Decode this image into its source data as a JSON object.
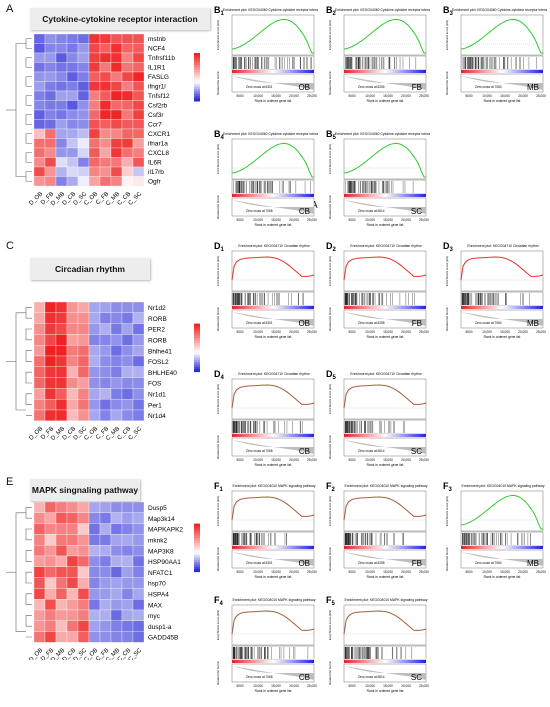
{
  "colors": {
    "hi": "#ee2222",
    "mid": "#ffffff",
    "lo": "#2b2bd8",
    "enrich_green": "#2ecc2e",
    "enrich_red": "#e83030",
    "enrich_brown": "#a85b3a"
  },
  "legend_ticks": [
    "2",
    "1",
    "0",
    "−1"
  ],
  "panels": [
    {
      "letter": "A",
      "title": "Cytokine-cytokine receptor interaction",
      "cols": [
        "D_OB",
        "D_FB",
        "D_MB",
        "D_CB",
        "D_SC",
        "C_OB",
        "C_FB",
        "C_MB",
        "C_CB",
        "C_SC"
      ],
      "rows": [
        "mstnb",
        "NCF4",
        "Tnfrsf11b",
        "IL1R1",
        "FASLG",
        "ifngr1l",
        "Tnfsf12",
        "Csf2rb",
        "Csf3r",
        "Ccr7",
        "CXCR1",
        "ifnar1a",
        "CXCL8",
        "IL6R",
        "il17rb",
        "Ogfr"
      ]
    },
    {
      "letter": "C",
      "title": "Circadian rhythm",
      "cols": [
        "D_OB",
        "D_FB",
        "D_MB",
        "D_CB",
        "D_SC",
        "C_OB",
        "C_FB",
        "C_MB",
        "C_CB",
        "C_SC"
      ],
      "rows": [
        "Nr1d2",
        "RORB",
        "PER2",
        "RORB",
        "Bhlhe41",
        "FOSL2",
        "BHLHE40",
        "FOS",
        "Nr1d1",
        "Per1",
        "Nr1d4"
      ]
    },
    {
      "letter": "E",
      "title": "MAPK singnaling pathway",
      "cols": [
        "D_OB",
        "D_FB",
        "D_MB",
        "D_CB",
        "D_SC",
        "C_OB",
        "C_FB",
        "C_MB",
        "C_CB",
        "C_SC"
      ],
      "rows": [
        "Dusp5",
        "Map3k14",
        "MAPKAPK2",
        "mknk2",
        "MAP3K8",
        "HSP90AA1",
        "NFATC1",
        "hsp70",
        "HSPA4",
        "MAX",
        "myc",
        "dusp1-a",
        "GADD45B"
      ]
    }
  ],
  "gsea": [
    {
      "label": "B1",
      "tissue": "OB",
      "title": "Enrichment plot: KEGG04060 Cytokine-cytokine receptor interaction",
      "zero": "Zero cross at 6301",
      "curve": "green"
    },
    {
      "label": "B2",
      "tissue": "FB",
      "title": "Enrichment plot: KEGG04060 Cytokine-cytokine receptor interaction",
      "zero": "Zero cross at 6255",
      "curve": "green"
    },
    {
      "label": "B3",
      "tissue": "MB",
      "title": "Enrichment plot: KEGG04060 Cytokine-cytokine receptor interaction",
      "zero": "Zero cross at 7060",
      "curve": "green"
    },
    {
      "label": "B4",
      "tissue": "CB",
      "title": "Enrichment plot: KEGG04060 Cytokine-cytokine receptor interaction",
      "zero": "Zero cross at 7068",
      "curve": "green"
    },
    {
      "label": "B5",
      "tissue": "SC",
      "title": "Enrichment plot: KEGG04060 Cytokine-cytokine receptor interaction",
      "zero": "Zero cross at 6514",
      "curve": "green"
    },
    {
      "label": "D1",
      "tissue": "OB",
      "title": "Enrichment plot: KEGG04710 Circadian rhythm",
      "zero": "Zero cross at 6301",
      "curve": "red"
    },
    {
      "label": "D2",
      "tissue": "FB",
      "title": "Enrichment plot: KEGG04710 Circadian rhythm",
      "zero": "Zero cross at 6255",
      "curve": "red"
    },
    {
      "label": "D3",
      "tissue": "MB",
      "title": "Enrichment plot: KEGG04710 Circadian rhythm",
      "zero": "Zero cross at 7060",
      "curve": "red"
    },
    {
      "label": "D4",
      "tissue": "CB",
      "title": "Enrichment plot: KEGG04710 Circadian rhythm",
      "zero": "Zero cross at 7068",
      "curve": "brown"
    },
    {
      "label": "D5",
      "tissue": "SC",
      "title": "Enrichment plot: KEGG04710 Circadian rhythm",
      "zero": "Zero cross at 6514",
      "curve": "brown"
    },
    {
      "label": "F1",
      "tissue": "OB",
      "title": "Enrichment plot: KEGG04010 MAPK signaling pathway",
      "zero": "Zero cross at 6301",
      "curve": "brown"
    },
    {
      "label": "F2",
      "tissue": "FB",
      "title": "Enrichment plot: KEGG04010 MAPK signaling pathway",
      "zero": "Zero cross at 6255",
      "curve": "brown"
    },
    {
      "label": "F3",
      "tissue": "MB",
      "title": "Enrichment plot: KEGG04010 MAPK signaling pathway",
      "zero": "Zero cross at 7060",
      "curve": "green"
    },
    {
      "label": "F4",
      "tissue": "CB",
      "title": "Enrichment plot: KEGG04010 MAPK signaling pathway",
      "zero": "Zero cross at 7068",
      "curve": "brown"
    },
    {
      "label": "F5",
      "tissue": "SC",
      "title": "Enrichment plot: KEGG04010 MAPK signaling pathway",
      "zero": "Zero cross at 6514",
      "curve": "brown"
    }
  ],
  "gsea_axis": {
    "ylabel_top": "Enrichment score (ES)",
    "ylabel_bottom": "Ranked list metric",
    "xlabel": "Rank in ordered gene list",
    "xticks": [
      "5000",
      "10,000",
      "15,000",
      "20,000",
      "25,000"
    ]
  },
  "stray_letter": "A"
}
